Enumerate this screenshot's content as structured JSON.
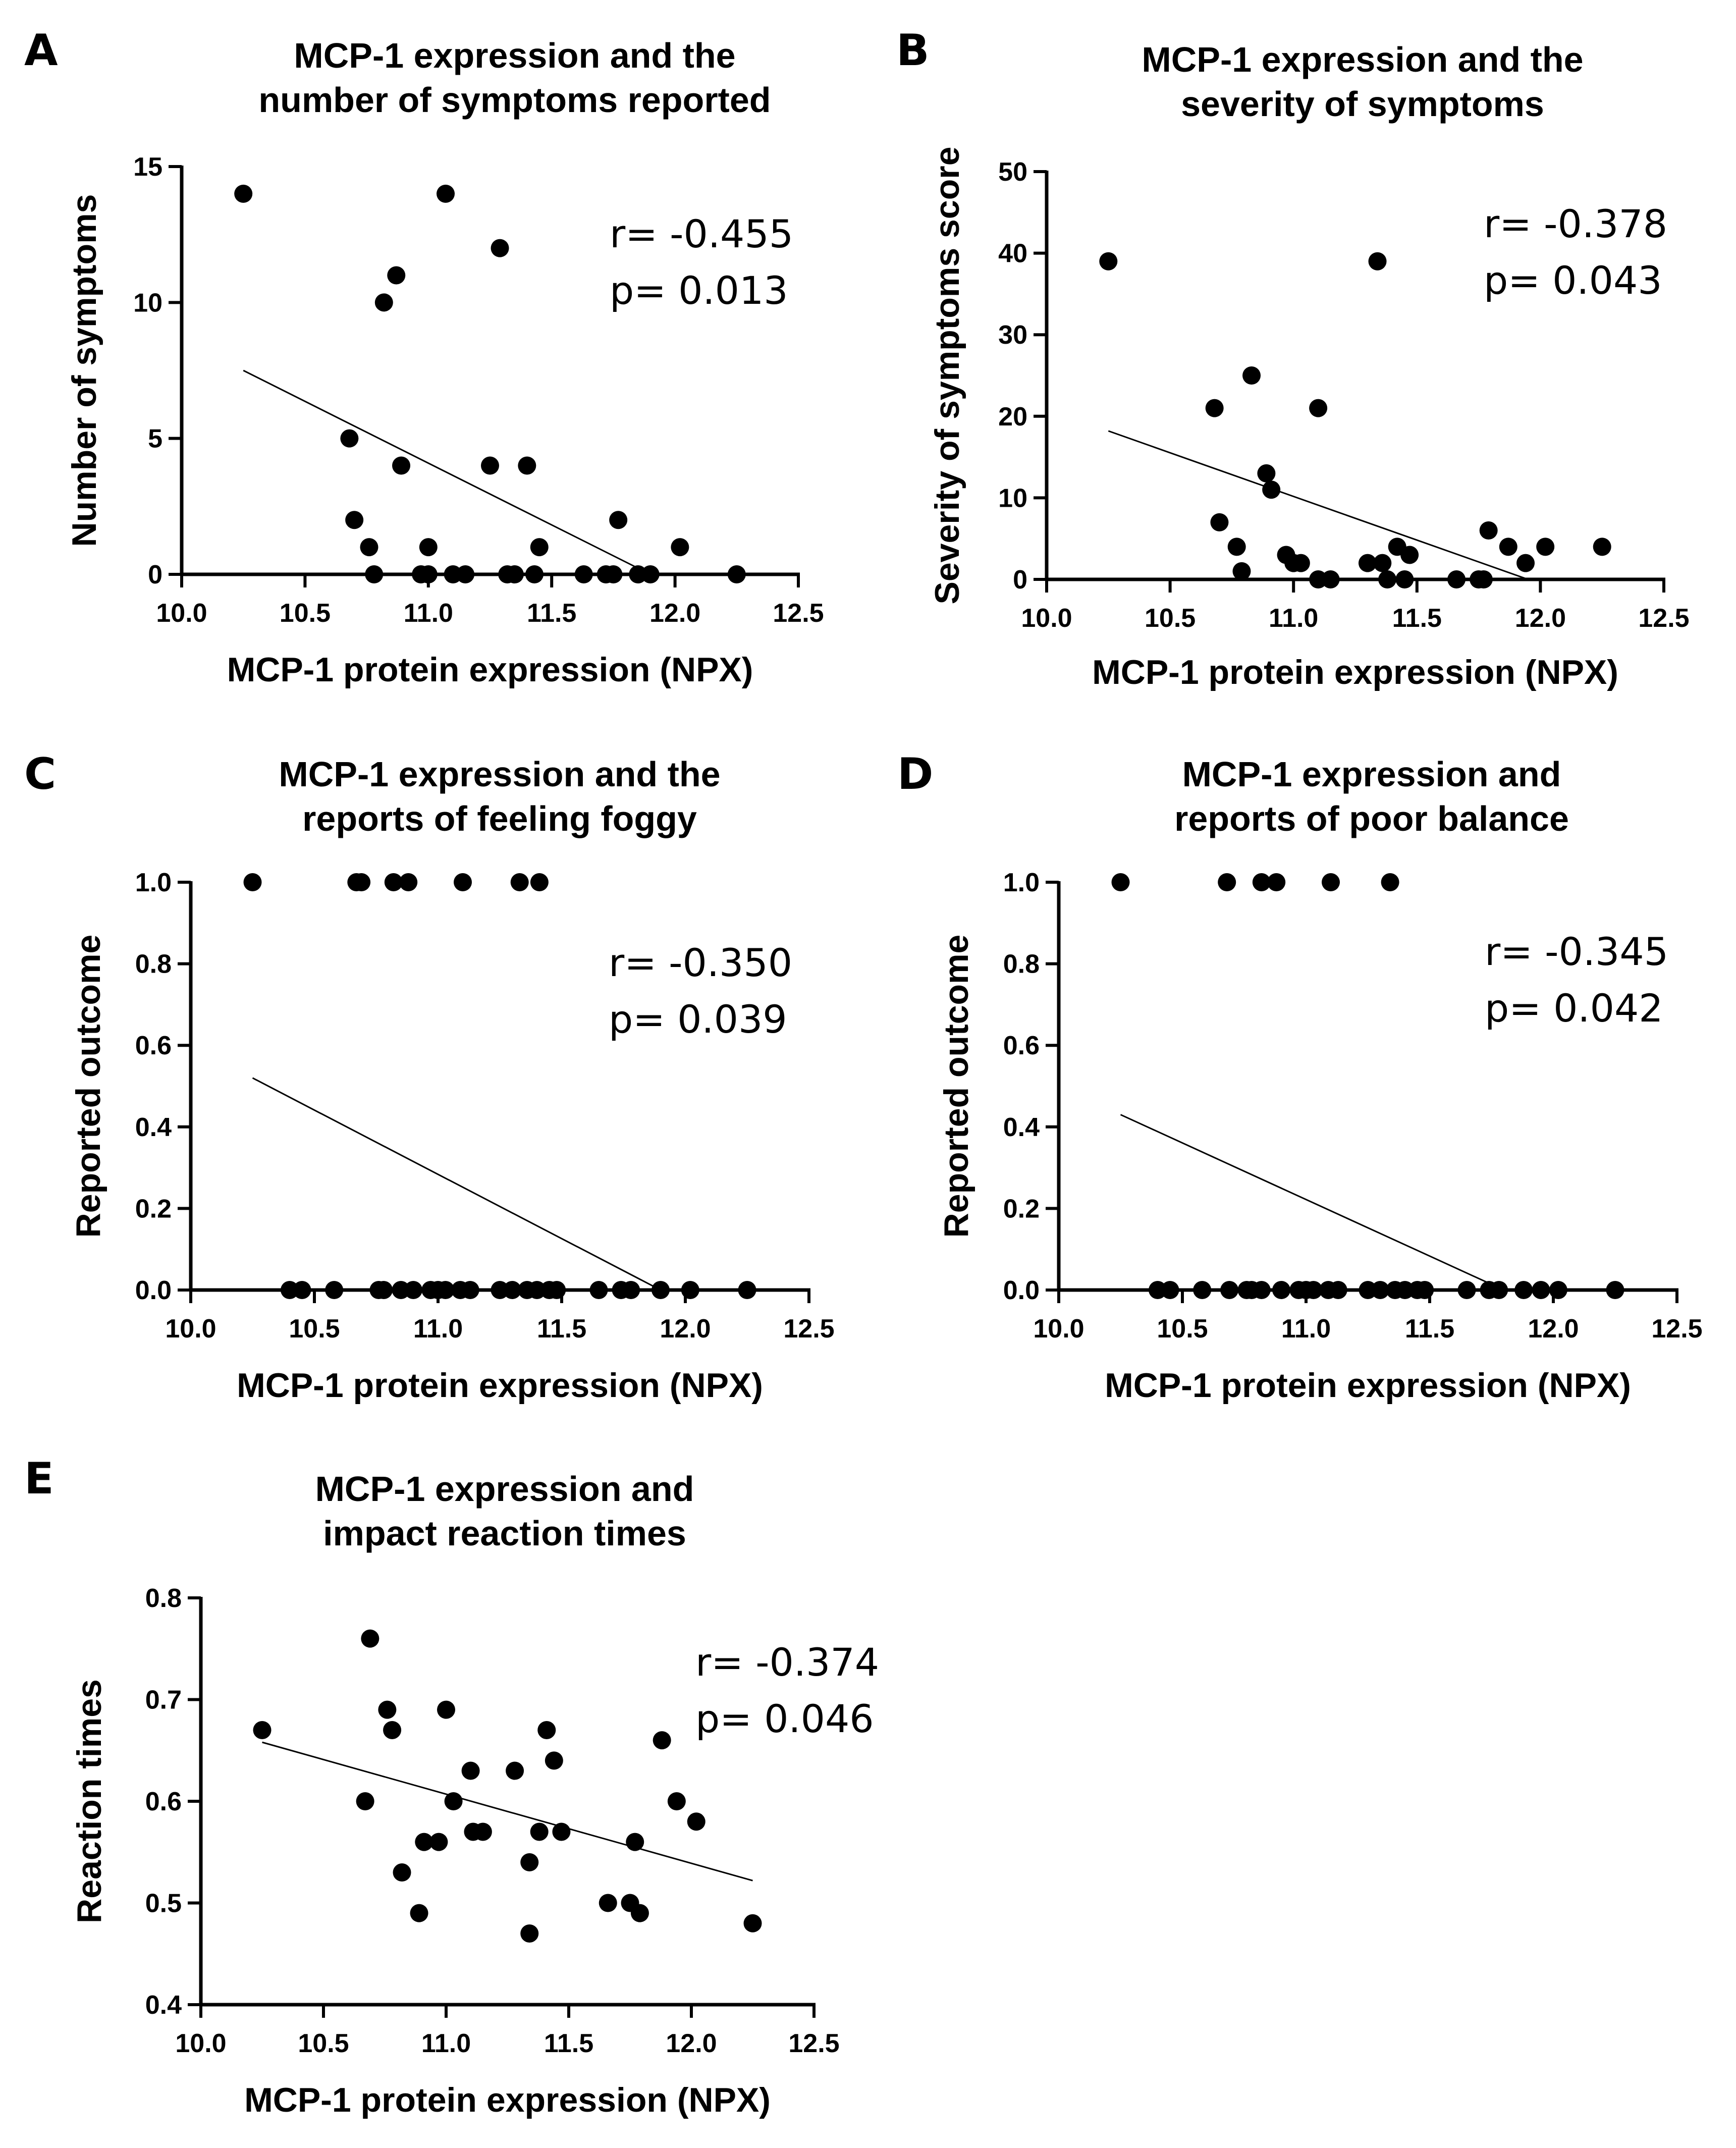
{
  "chart_data": [
    {
      "panel": "A",
      "type": "scatter",
      "title": [
        "MCP-1 expression and the",
        "number of symptoms reported"
      ],
      "xlabel": "MCP-1 protein expression (NPX)",
      "ylabel": "Number of symptoms",
      "xlim": [
        10.0,
        12.5
      ],
      "ylim": [
        0,
        15
      ],
      "xticks": [
        "10.0",
        "10.5",
        "11.0",
        "11.5",
        "12.0",
        "12.5"
      ],
      "yticks": [
        "0",
        "5",
        "10",
        "15"
      ],
      "stats": [
        "r= -0.455",
        "p= 0.013"
      ],
      "points": [
        [
          10.25,
          14
        ],
        [
          10.68,
          5
        ],
        [
          10.7,
          2
        ],
        [
          10.76,
          1
        ],
        [
          10.78,
          0
        ],
        [
          10.82,
          10
        ],
        [
          10.87,
          11
        ],
        [
          10.89,
          4
        ],
        [
          10.97,
          0
        ],
        [
          11.0,
          0
        ],
        [
          11.0,
          1
        ],
        [
          11.07,
          14
        ],
        [
          11.1,
          0
        ],
        [
          11.15,
          0
        ],
        [
          11.25,
          4
        ],
        [
          11.29,
          12
        ],
        [
          11.32,
          0
        ],
        [
          11.35,
          0
        ],
        [
          11.4,
          4
        ],
        [
          11.43,
          0
        ],
        [
          11.45,
          1
        ],
        [
          11.63,
          0
        ],
        [
          11.72,
          0
        ],
        [
          11.75,
          0
        ],
        [
          11.77,
          2
        ],
        [
          11.85,
          0
        ],
        [
          11.9,
          0
        ],
        [
          12.02,
          1
        ],
        [
          12.25,
          0
        ]
      ],
      "fit_line": [
        [
          10.25,
          7.5
        ],
        [
          11.9,
          0
        ]
      ]
    },
    {
      "panel": "B",
      "type": "scatter",
      "title": [
        "MCP-1 expression and the",
        "severity of symptoms"
      ],
      "xlabel": "MCP-1 protein expression (NPX)",
      "ylabel": "Severity of symptoms score",
      "xlim": [
        10.0,
        12.5
      ],
      "ylim": [
        0,
        50
      ],
      "xticks": [
        "10.0",
        "10.5",
        "11.0",
        "11.5",
        "12.0",
        "12.5"
      ],
      "yticks": [
        "0",
        "10",
        "20",
        "30",
        "40",
        "50"
      ],
      "stats": [
        "r= -0.378",
        "p= 0.043"
      ],
      "points": [
        [
          10.25,
          39
        ],
        [
          10.68,
          21
        ],
        [
          10.7,
          7
        ],
        [
          10.77,
          4
        ],
        [
          10.79,
          1
        ],
        [
          10.83,
          25
        ],
        [
          10.89,
          13
        ],
        [
          10.91,
          11
        ],
        [
          10.97,
          3
        ],
        [
          11.0,
          2
        ],
        [
          11.03,
          2
        ],
        [
          11.1,
          0
        ],
        [
          11.1,
          21
        ],
        [
          11.15,
          0
        ],
        [
          11.3,
          2
        ],
        [
          11.34,
          39
        ],
        [
          11.36,
          2
        ],
        [
          11.38,
          0
        ],
        [
          11.42,
          4
        ],
        [
          11.45,
          0
        ],
        [
          11.47,
          3
        ],
        [
          11.66,
          0
        ],
        [
          11.75,
          0
        ],
        [
          11.77,
          0
        ],
        [
          11.79,
          6
        ],
        [
          11.87,
          4
        ],
        [
          11.94,
          2
        ],
        [
          12.02,
          4
        ],
        [
          12.25,
          4
        ]
      ],
      "fit_line": [
        [
          10.25,
          18.2
        ],
        [
          11.95,
          0
        ]
      ]
    },
    {
      "panel": "C",
      "type": "scatter",
      "title": [
        "MCP-1 expression and the",
        "reports of feeling foggy"
      ],
      "xlabel": "MCP-1 protein expression (NPX)",
      "ylabel": "Reported outcome",
      "xlim": [
        10.0,
        12.5
      ],
      "ylim": [
        0,
        1.0
      ],
      "xticks": [
        "10.0",
        "10.5",
        "11.0",
        "11.5",
        "12.0",
        "12.5"
      ],
      "yticks": [
        "0.0",
        "0.2",
        "0.4",
        "0.6",
        "0.8",
        "1.0"
      ],
      "stats": [
        "r= -0.350",
        "p= 0.039"
      ],
      "points": [
        [
          10.25,
          1
        ],
        [
          10.67,
          1
        ],
        [
          10.69,
          1
        ],
        [
          10.82,
          1
        ],
        [
          10.88,
          1
        ],
        [
          11.1,
          1
        ],
        [
          11.33,
          1
        ],
        [
          11.41,
          1
        ],
        [
          10.4,
          0
        ],
        [
          10.45,
          0
        ],
        [
          10.58,
          0
        ],
        [
          10.76,
          0
        ],
        [
          10.78,
          0
        ],
        [
          10.85,
          0
        ],
        [
          10.9,
          0
        ],
        [
          10.97,
          0
        ],
        [
          11.0,
          0
        ],
        [
          11.03,
          0
        ],
        [
          11.09,
          0
        ],
        [
          11.13,
          0
        ],
        [
          11.25,
          0
        ],
        [
          11.3,
          0
        ],
        [
          11.36,
          0
        ],
        [
          11.4,
          0
        ],
        [
          11.45,
          0
        ],
        [
          11.48,
          0
        ],
        [
          11.65,
          0
        ],
        [
          11.74,
          0
        ],
        [
          11.78,
          0
        ],
        [
          11.9,
          0
        ],
        [
          12.02,
          0
        ],
        [
          12.25,
          0
        ]
      ],
      "fit_line": [
        [
          10.25,
          0.52
        ],
        [
          11.9,
          0
        ]
      ]
    },
    {
      "panel": "D",
      "type": "scatter",
      "title": [
        "MCP-1 expression and",
        "reports of poor balance"
      ],
      "xlabel": "MCP-1 protein expression (NPX)",
      "ylabel": "Reported outcome",
      "xlim": [
        10.0,
        12.5
      ],
      "ylim": [
        0,
        1.0
      ],
      "xticks": [
        "10.0",
        "10.5",
        "11.0",
        "11.5",
        "12.0",
        "12.5"
      ],
      "yticks": [
        "0.0",
        "0.2",
        "0.4",
        "0.6",
        "0.8",
        "1.0"
      ],
      "stats": [
        "r= -0.345",
        "p= 0.042"
      ],
      "points": [
        [
          10.25,
          1
        ],
        [
          10.68,
          1
        ],
        [
          10.82,
          1
        ],
        [
          10.88,
          1
        ],
        [
          11.1,
          1
        ],
        [
          11.34,
          1
        ],
        [
          10.4,
          0
        ],
        [
          10.45,
          0
        ],
        [
          10.58,
          0
        ],
        [
          10.69,
          0
        ],
        [
          10.76,
          0
        ],
        [
          10.78,
          0
        ],
        [
          10.82,
          0
        ],
        [
          10.9,
          0
        ],
        [
          10.97,
          0
        ],
        [
          11.0,
          0
        ],
        [
          11.03,
          0
        ],
        [
          11.09,
          0
        ],
        [
          11.13,
          0
        ],
        [
          11.25,
          0
        ],
        [
          11.3,
          0
        ],
        [
          11.36,
          0
        ],
        [
          11.4,
          0
        ],
        [
          11.45,
          0
        ],
        [
          11.48,
          0
        ],
        [
          11.65,
          0
        ],
        [
          11.74,
          0
        ],
        [
          11.78,
          0
        ],
        [
          11.88,
          0
        ],
        [
          11.95,
          0
        ],
        [
          12.02,
          0
        ],
        [
          12.25,
          0
        ]
      ],
      "fit_line": [
        [
          10.25,
          0.43
        ],
        [
          11.8,
          0
        ]
      ]
    },
    {
      "panel": "E",
      "type": "scatter",
      "title": [
        "MCP-1 expression and",
        "impact reaction times"
      ],
      "xlabel": "MCP-1 protein expression (NPX)",
      "ylabel": "Reaction times",
      "xlim": [
        10.0,
        12.5
      ],
      "ylim": [
        0.4,
        0.8
      ],
      "xticks": [
        "10.0",
        "10.5",
        "11.0",
        "11.5",
        "12.0",
        "12.5"
      ],
      "yticks": [
        "0.4",
        "0.5",
        "0.6",
        "0.7",
        "0.8"
      ],
      "stats": [
        "r= -0.374",
        "p= 0.046"
      ],
      "points": [
        [
          10.25,
          0.67
        ],
        [
          10.67,
          0.6
        ],
        [
          10.69,
          0.76
        ],
        [
          10.76,
          0.69
        ],
        [
          10.78,
          0.67
        ],
        [
          10.82,
          0.53
        ],
        [
          10.89,
          0.49
        ],
        [
          10.91,
          0.56
        ],
        [
          10.97,
          0.56
        ],
        [
          11.0,
          0.69
        ],
        [
          11.03,
          0.6
        ],
        [
          11.1,
          0.63
        ],
        [
          11.11,
          0.57
        ],
        [
          11.15,
          0.57
        ],
        [
          11.28,
          0.63
        ],
        [
          11.34,
          0.54
        ],
        [
          11.34,
          0.47
        ],
        [
          11.38,
          0.57
        ],
        [
          11.41,
          0.67
        ],
        [
          11.44,
          0.64
        ],
        [
          11.47,
          0.57
        ],
        [
          11.66,
          0.5
        ],
        [
          11.75,
          0.5
        ],
        [
          11.77,
          0.56
        ],
        [
          11.79,
          0.49
        ],
        [
          11.88,
          0.66
        ],
        [
          11.94,
          0.6
        ],
        [
          12.02,
          0.58
        ],
        [
          12.25,
          0.48
        ]
      ],
      "fit_line": [
        [
          10.25,
          0.658
        ],
        [
          12.25,
          0.522
        ]
      ]
    }
  ]
}
